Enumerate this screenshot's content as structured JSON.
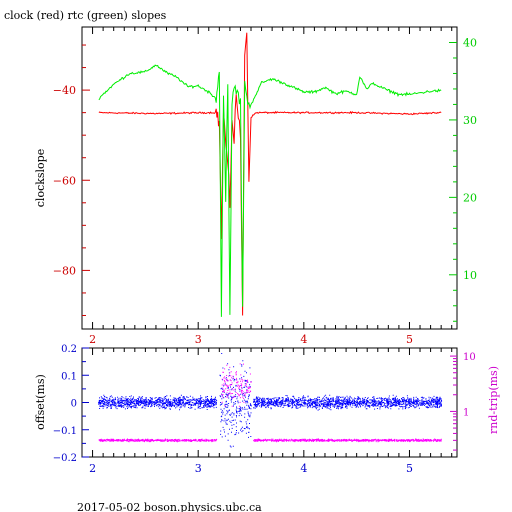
{
  "title": "clock (red) rtc (green) slopes",
  "footer": "2017-05-02 boson.physics.ubc.ca",
  "colors": {
    "red": "#ff0000",
    "green": "#00ee00",
    "blue": "#0000ff",
    "magenta": "#ff00ff",
    "axis_red": "#cc0000",
    "axis_green": "#00cc00",
    "axis_blue": "#0000cc",
    "axis_magenta": "#cc00cc",
    "black": "#000000"
  },
  "chart_data": [
    {
      "type": "line",
      "name": "top",
      "title": "clock (red) rtc (green) slopes",
      "xlim": [
        1.9,
        5.45
      ],
      "ylim": [
        -93,
        -26
      ],
      "y2lim": [
        3,
        42
      ],
      "ylabel": "clockslope",
      "x_ticks": [
        2,
        3,
        4,
        5
      ],
      "y_ticks": [
        -40,
        -60,
        -80
      ],
      "y2_ticks": [
        10,
        20,
        30,
        40
      ],
      "series": [
        {
          "name": "clock",
          "color": "red",
          "axis": "left",
          "x": [
            2.06,
            2.6,
            3.1,
            3.17,
            3.2,
            3.22,
            3.24,
            3.26,
            3.28,
            3.3,
            3.32,
            3.34,
            3.36,
            3.38,
            3.4,
            3.42,
            3.44,
            3.46,
            3.48,
            3.5,
            3.55,
            4.0,
            4.5,
            5.0,
            5.3
          ],
          "y": [
            -45,
            -45.2,
            -45,
            -45,
            -47,
            -73,
            -44,
            -52,
            -57,
            -66,
            -46,
            -51,
            -40,
            -47,
            -50,
            -90,
            -32,
            -26,
            -60,
            -46,
            -45,
            -45,
            -45,
            -45.3,
            -45
          ]
        },
        {
          "name": "rtc",
          "color": "green",
          "axis": "right",
          "x": [
            2.06,
            2.2,
            2.35,
            2.5,
            2.6,
            2.7,
            2.8,
            2.9,
            3.0,
            3.1,
            3.17,
            3.2,
            3.22,
            3.24,
            3.26,
            3.28,
            3.3,
            3.32,
            3.34,
            3.36,
            3.38,
            3.4,
            3.42,
            3.44,
            3.46,
            3.48,
            3.5,
            3.6,
            3.7,
            3.8,
            3.9,
            4.0,
            4.1,
            4.2,
            4.3,
            4.4,
            4.5,
            4.53,
            4.6,
            4.65,
            4.7,
            4.8,
            4.9,
            5.0,
            5.1,
            5.2,
            5.3
          ],
          "y": [
            32.8,
            34.6,
            36,
            36.2,
            37.1,
            36.1,
            35.5,
            34.3,
            34.4,
            33.6,
            32.8,
            36.3,
            5,
            34.2,
            20,
            34.5,
            4,
            32,
            34,
            33.8,
            33,
            32.5,
            5,
            35.5,
            33,
            31.5,
            32,
            34.8,
            35.3,
            34.8,
            34.2,
            33.6,
            33.6,
            34.2,
            33.4,
            33.7,
            33.3,
            35.6,
            33.9,
            34.8,
            34.4,
            33.8,
            33.3,
            33.3,
            33.5,
            33.7,
            33.8
          ]
        }
      ]
    },
    {
      "type": "scatter",
      "name": "bottom",
      "xlim": [
        1.9,
        5.45
      ],
      "ylim": [
        -0.2,
        0.2
      ],
      "ylabel": "offset(ms)",
      "y2label": "rnd-trip(ms)",
      "y2scale": "log",
      "y2lim": [
        0.15,
        14
      ],
      "x_ticks": [
        2,
        3,
        4,
        5
      ],
      "y_ticks": [
        0.2,
        0.1,
        0,
        -0.1,
        -0.2
      ],
      "y_tick_labels": [
        "0.2",
        "0.1",
        "0",
        "−0.1",
        "−0.2"
      ],
      "y2_ticks": [
        1,
        10
      ],
      "series": [
        {
          "name": "offset",
          "color": "blue",
          "axis": "left",
          "segments": [
            {
              "x": [
                2.05,
                3.17
              ],
              "center": 0.0,
              "spread": 0.03
            },
            {
              "x": [
                3.2,
                3.5
              ],
              "center": 0.0,
              "spread": 0.2
            },
            {
              "x": [
                3.52,
                5.3
              ],
              "center": 0.0,
              "spread": 0.03
            }
          ]
        },
        {
          "name": "rnd-trip",
          "color": "magenta",
          "axis": "right",
          "segments": [
            {
              "x": [
                2.05,
                3.17
              ],
              "center": 0.3,
              "spread": 0.03
            },
            {
              "x": [
                3.22,
                3.5
              ],
              "center": 2.9,
              "spread": 0.5
            },
            {
              "x": [
                3.52,
                5.3
              ],
              "center": 0.3,
              "spread": 0.03
            }
          ]
        }
      ]
    }
  ]
}
